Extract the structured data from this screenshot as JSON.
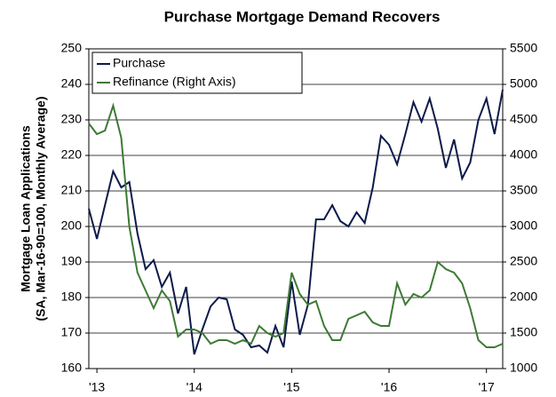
{
  "chart_data": {
    "type": "line",
    "title": "Purchase Mortgage Demand Recovers",
    "ylabel": [
      "Mortgage Loan Applications",
      "(SA, Mar-16-90=100, Monthly Average)"
    ],
    "x": [
      2012.917,
      2013.0,
      2013.083,
      2013.167,
      2013.25,
      2013.333,
      2013.417,
      2013.5,
      2013.583,
      2013.667,
      2013.75,
      2013.833,
      2013.917,
      2014.0,
      2014.083,
      2014.167,
      2014.25,
      2014.333,
      2014.417,
      2014.5,
      2014.583,
      2014.667,
      2014.75,
      2014.833,
      2014.917,
      2015.0,
      2015.083,
      2015.167,
      2015.25,
      2015.333,
      2015.417,
      2015.5,
      2015.583,
      2015.667,
      2015.75,
      2015.833,
      2015.917,
      2016.0,
      2016.083,
      2016.167,
      2016.25,
      2016.333,
      2016.417,
      2016.5,
      2016.583,
      2016.667,
      2016.75,
      2016.833,
      2016.917,
      2017.0,
      2017.083,
      2017.167
    ],
    "series": [
      {
        "name": "Purchase",
        "color": "#0d1a4a",
        "values": [
          205,
          196.5,
          206,
          215.5,
          211,
          212.5,
          198,
          188,
          190.5,
          183,
          187,
          175.5,
          183,
          164,
          171,
          177.5,
          180,
          179.5,
          171,
          169.5,
          166,
          166.5,
          164.5,
          172,
          166,
          184.5,
          169.5,
          178,
          202,
          202,
          206,
          201.5,
          200,
          204,
          201,
          211,
          225.5,
          223,
          217.5,
          226,
          235,
          229.5,
          236,
          227.5,
          216.5,
          224.5,
          213.5,
          218,
          230,
          236,
          226,
          238.5
        ]
      },
      {
        "name": "Refinance (Right Axis)",
        "color": "#3d7a35",
        "axis": "y2",
        "values": [
          4450,
          4300,
          4350,
          4700,
          4250,
          3000,
          2350,
          2100,
          1850,
          2100,
          1950,
          1450,
          1550,
          1550,
          1500,
          1350,
          1400,
          1400,
          1350,
          1400,
          1350,
          1600,
          1500,
          1450,
          1500,
          2350,
          2050,
          1900,
          1950,
          1600,
          1400,
          1400,
          1700,
          1750,
          1800,
          1650,
          1600,
          1600,
          2200,
          1900,
          2050,
          2000,
          2100,
          2500,
          2400,
          2350,
          2200,
          1850,
          1400,
          1300,
          1300,
          1350
        ]
      }
    ],
    "xlim": [
      2012.917,
      2017.167
    ],
    "xticks": [
      {
        "value": 2013,
        "label": "'13"
      },
      {
        "value": 2014,
        "label": "'14"
      },
      {
        "value": 2015,
        "label": "'15"
      },
      {
        "value": 2016,
        "label": "'16"
      },
      {
        "value": 2017,
        "label": "'17"
      }
    ],
    "ylim": [
      160,
      250
    ],
    "yticks": [
      160,
      170,
      180,
      190,
      200,
      210,
      220,
      230,
      240,
      250
    ],
    "y2lim": [
      1000,
      5500
    ],
    "y2ticks": [
      1000,
      1500,
      2000,
      2500,
      3000,
      3500,
      4000,
      4500,
      5000,
      5500
    ],
    "grid": true,
    "legend": "upper-left"
  }
}
